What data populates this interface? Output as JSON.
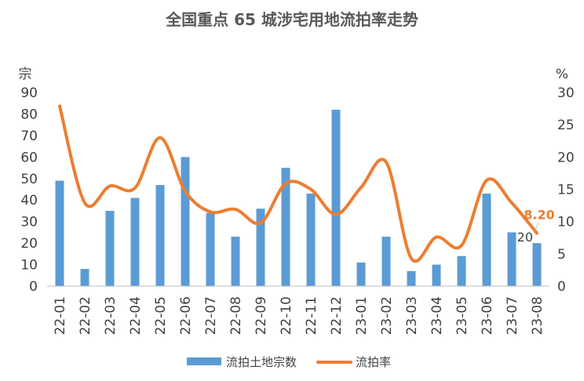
{
  "chart_data": {
    "type": "bar+line",
    "title": "全国重点 65 城涉宅用地流拍率走势",
    "categories": [
      "22-01",
      "22-02",
      "22-03",
      "22-04",
      "22-05",
      "22-06",
      "22-07",
      "22-08",
      "22-09",
      "22-10",
      "22-11",
      "22-12",
      "23-01",
      "23-02",
      "23-03",
      "23-04",
      "23-05",
      "23-06",
      "23-07",
      "23-08"
    ],
    "left_axis": {
      "unit": "宗",
      "ylim": [
        0,
        90
      ],
      "ticks": [
        "0",
        "10",
        "20",
        "30",
        "40",
        "50",
        "60",
        "70",
        "80",
        "90"
      ]
    },
    "right_axis": {
      "unit": "%",
      "ylim": [
        0,
        30
      ],
      "ticks": [
        "0",
        "5",
        "10",
        "15",
        "20",
        "25",
        "30"
      ]
    },
    "series": [
      {
        "name": "流拍土地宗数",
        "type": "bar",
        "axis": "left",
        "color": "#5B9BD5",
        "values": [
          49,
          8,
          35,
          41,
          47,
          60,
          34,
          23,
          36,
          55,
          43,
          82,
          11,
          23,
          7,
          10,
          14,
          43,
          25,
          20
        ]
      },
      {
        "name": "流拍率",
        "type": "line",
        "axis": "right",
        "color": "#ED7D31",
        "values": [
          27.9,
          12.9,
          15.5,
          15.2,
          23.0,
          14.7,
          11.5,
          11.9,
          9.8,
          15.9,
          15.0,
          11.1,
          15.3,
          19.2,
          4.3,
          7.6,
          6.3,
          16.4,
          12.9,
          8.2
        ]
      }
    ],
    "annotations": {
      "last_line_label": "8.20",
      "last_bar_label": "20"
    },
    "legend": {
      "placement": "bottom-center"
    },
    "grid": false
  }
}
